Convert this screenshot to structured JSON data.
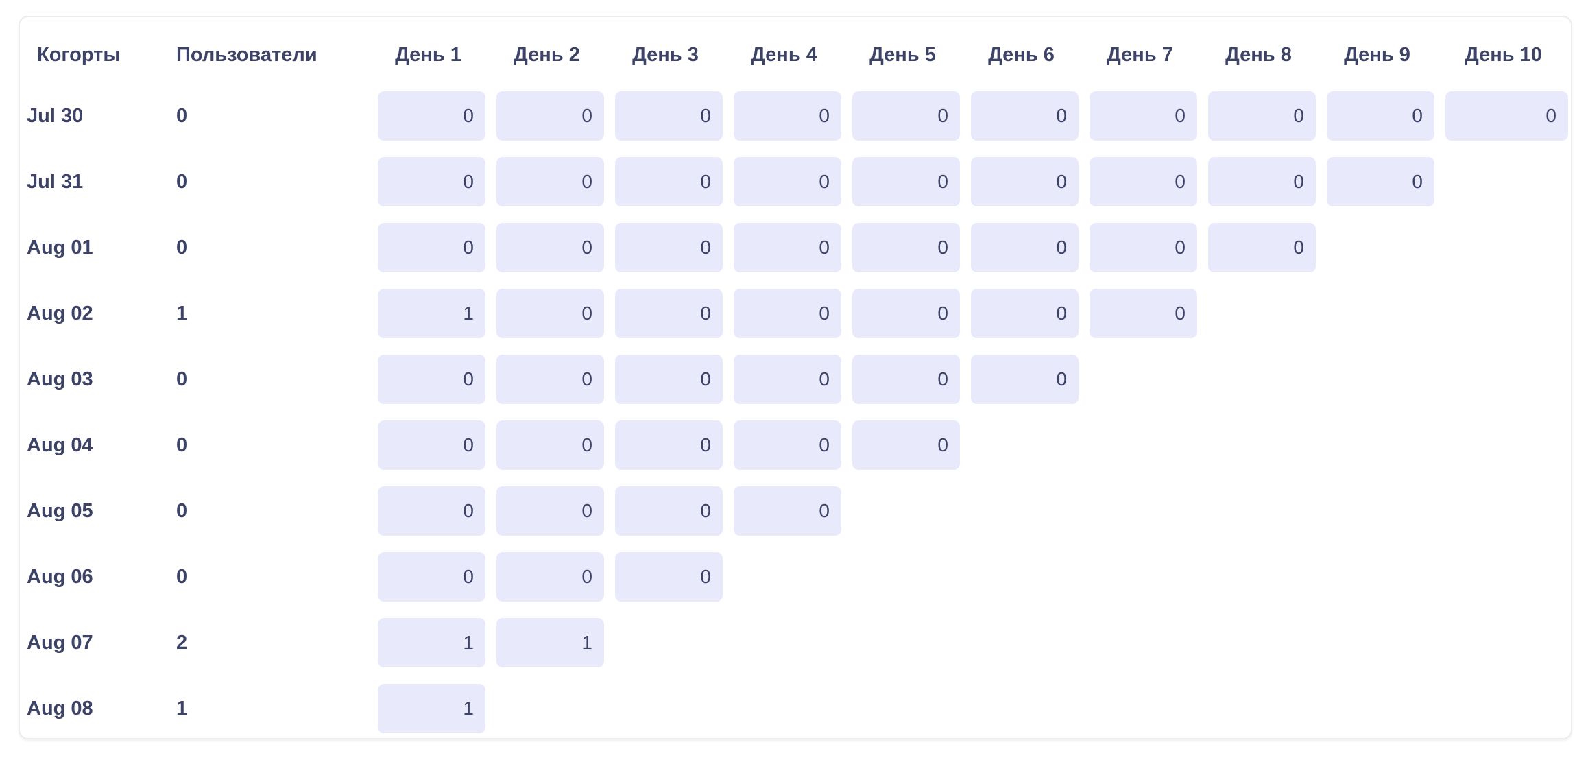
{
  "table": {
    "columns": [
      "Когорты",
      "Пользователи",
      "День 1",
      "День 2",
      "День 3",
      "День 4",
      "День 5",
      "День 6",
      "День 7",
      "День 8",
      "День 9",
      "День 10"
    ],
    "rows": [
      {
        "cohort": "Jul 30",
        "users": "0",
        "cells": [
          "0",
          "0",
          "0",
          "0",
          "0",
          "0",
          "0",
          "0",
          "0",
          "0"
        ]
      },
      {
        "cohort": "Jul 31",
        "users": "0",
        "cells": [
          "0",
          "0",
          "0",
          "0",
          "0",
          "0",
          "0",
          "0",
          "0"
        ]
      },
      {
        "cohort": "Aug 01",
        "users": "0",
        "cells": [
          "0",
          "0",
          "0",
          "0",
          "0",
          "0",
          "0",
          "0"
        ]
      },
      {
        "cohort": "Aug 02",
        "users": "1",
        "cells": [
          "1",
          "0",
          "0",
          "0",
          "0",
          "0",
          "0"
        ]
      },
      {
        "cohort": "Aug 03",
        "users": "0",
        "cells": [
          "0",
          "0",
          "0",
          "0",
          "0",
          "0"
        ]
      },
      {
        "cohort": "Aug 04",
        "users": "0",
        "cells": [
          "0",
          "0",
          "0",
          "0",
          "0"
        ]
      },
      {
        "cohort": "Aug 05",
        "users": "0",
        "cells": [
          "0",
          "0",
          "0",
          "0"
        ]
      },
      {
        "cohort": "Aug 06",
        "users": "0",
        "cells": [
          "0",
          "0",
          "0"
        ]
      },
      {
        "cohort": "Aug 07",
        "users": "2",
        "cells": [
          "1",
          "1"
        ]
      },
      {
        "cohort": "Aug 08",
        "users": "1",
        "cells": [
          "1"
        ]
      }
    ]
  },
  "colors": {
    "cell_background": "#e8eafb",
    "text": "#3d4366",
    "card_border": "#ececec",
    "page_background": "#ffffff"
  }
}
